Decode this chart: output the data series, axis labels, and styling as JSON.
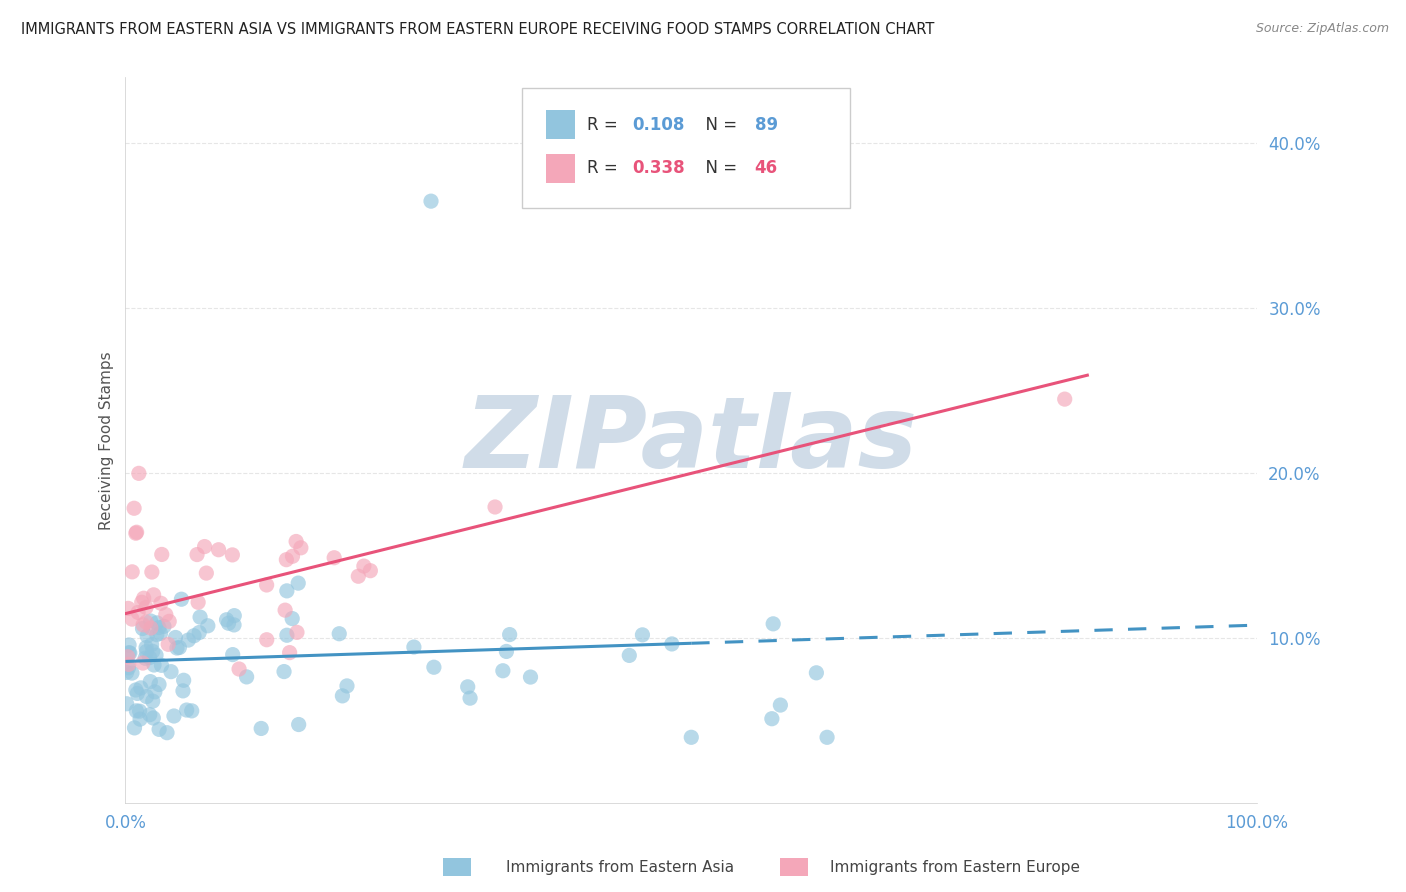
{
  "title": "IMMIGRANTS FROM EASTERN ASIA VS IMMIGRANTS FROM EASTERN EUROPE RECEIVING FOOD STAMPS CORRELATION CHART",
  "source": "Source: ZipAtlas.com",
  "ylabel": "Receiving Food Stamps",
  "color_blue": "#92c5de",
  "color_pink": "#f4a7b9",
  "color_blue_line": "#4393c3",
  "color_pink_line": "#e8537a",
  "watermark_color": "#d0dce8",
  "xlim": [
    0.0,
    1.0
  ],
  "ylim": [
    0.0,
    0.44
  ],
  "yticks": [
    0.1,
    0.2,
    0.3,
    0.4
  ],
  "ytick_labels": [
    "10.0%",
    "20.0%",
    "30.0%",
    "40.0%"
  ],
  "xticks": [
    0.0,
    1.0
  ],
  "xtick_labels": [
    "0.0%",
    "100.0%"
  ],
  "legend_label1": "Immigrants from Eastern Asia",
  "legend_label2": "Immigrants from Eastern Europe",
  "background_color": "#ffffff",
  "grid_color": "#e0e0e0"
}
